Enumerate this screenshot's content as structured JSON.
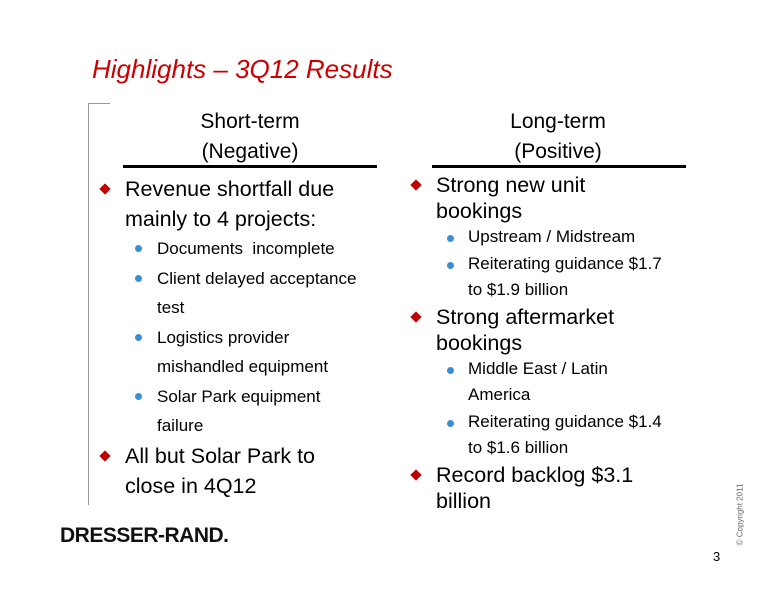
{
  "title": "Highlights – 3Q12 Results",
  "columns": [
    {
      "heading": [
        "Short-term",
        "(Negative)"
      ],
      "bullets": [
        {
          "lines": [
            "Revenue shortfall due",
            "mainly to 4 projects:"
          ],
          "sub_bullets": [
            {
              "lines": [
                "Documents  incomplete"
              ]
            },
            {
              "lines": [
                "Client delayed acceptance",
                "test"
              ]
            },
            {
              "lines": [
                "Logistics provider",
                "mishandled equipment"
              ]
            },
            {
              "lines": [
                "Solar Park equipment",
                "failure"
              ]
            }
          ]
        },
        {
          "lines": [
            "All but Solar Park to",
            "close in 4Q12"
          ],
          "sub_bullets": []
        }
      ]
    },
    {
      "heading": [
        "Long-term",
        "(Positive)"
      ],
      "bullets": [
        {
          "lines": [
            "Strong new unit",
            "bookings"
          ],
          "sub_bullets": [
            {
              "lines": [
                "Upstream / Midstream"
              ]
            },
            {
              "lines": [
                "Reiterating guidance $1.7",
                "to $1.9 billion"
              ]
            }
          ]
        },
        {
          "lines": [
            "Strong aftermarket",
            "bookings"
          ],
          "sub_bullets": [
            {
              "lines": [
                "Middle East / Latin",
                "America"
              ]
            },
            {
              "lines": [
                "Reiterating guidance $1.4",
                "to $1.6 billion"
              ]
            }
          ]
        },
        {
          "lines": [
            "Record backlog $3.1",
            "billion"
          ],
          "sub_bullets": []
        }
      ]
    }
  ],
  "logo": "DRESSER-RAND.",
  "copyright": "© Copyright 2011",
  "page_number": "3"
}
